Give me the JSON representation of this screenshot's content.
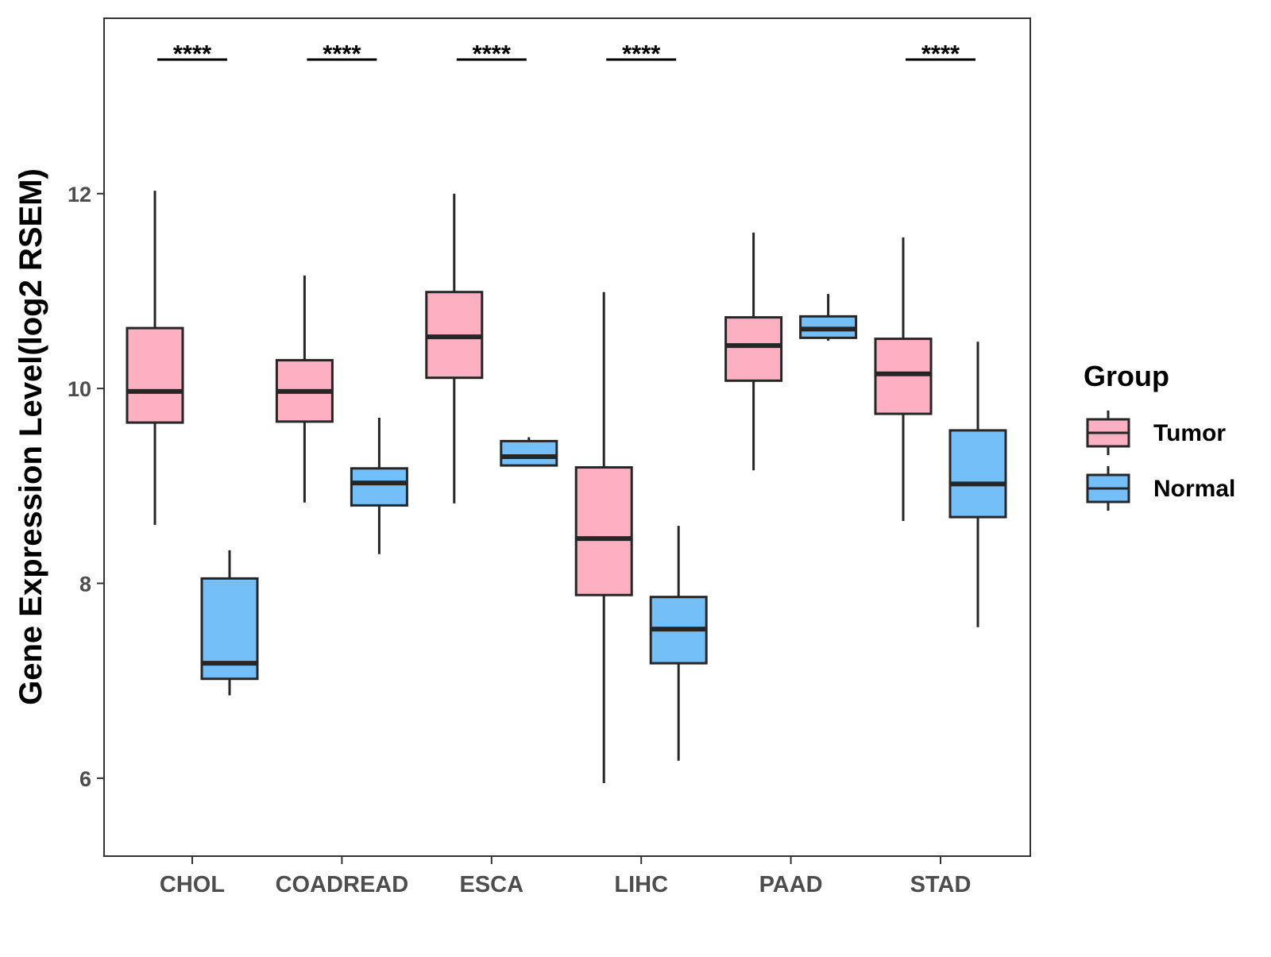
{
  "chart_data": {
    "type": "boxplot",
    "title": "",
    "xlabel": "",
    "ylabel": "Gene Expression Level(log2 RSEM)",
    "ylim": [
      5.2,
      13.8
    ],
    "yticks": [
      6,
      8,
      10,
      12
    ],
    "categories": [
      "CHOL",
      "COADREAD",
      "ESCA",
      "LIHC",
      "PAAD",
      "STAD"
    ],
    "legend": {
      "title": "Group",
      "position": "right"
    },
    "series": [
      {
        "name": "Tumor",
        "color": "#FCB0C2",
        "boxes": [
          {
            "category": "CHOL",
            "min": 8.6,
            "q1": 9.65,
            "median": 9.97,
            "q3": 10.62,
            "max": 12.03
          },
          {
            "category": "COADREAD",
            "min": 8.83,
            "q1": 9.66,
            "median": 9.97,
            "q3": 10.29,
            "max": 11.16
          },
          {
            "category": "ESCA",
            "min": 8.82,
            "q1": 10.11,
            "median": 10.53,
            "q3": 10.99,
            "max": 12.0
          },
          {
            "category": "LIHC",
            "min": 5.95,
            "q1": 7.88,
            "median": 8.46,
            "q3": 9.19,
            "max": 10.99
          },
          {
            "category": "PAAD",
            "min": 9.16,
            "q1": 10.08,
            "median": 10.44,
            "q3": 10.73,
            "max": 11.6
          },
          {
            "category": "STAD",
            "min": 8.64,
            "q1": 9.74,
            "median": 10.15,
            "q3": 10.51,
            "max": 11.55
          }
        ]
      },
      {
        "name": "Normal",
        "color": "#75BFF8",
        "boxes": [
          {
            "category": "CHOL",
            "min": 6.85,
            "q1": 7.02,
            "median": 7.18,
            "q3": 8.05,
            "max": 8.34
          },
          {
            "category": "COADREAD",
            "min": 8.3,
            "q1": 8.8,
            "median": 9.03,
            "q3": 9.18,
            "max": 9.7
          },
          {
            "category": "ESCA",
            "min": 9.2,
            "q1": 9.21,
            "median": 9.3,
            "q3": 9.46,
            "max": 9.5
          },
          {
            "category": "LIHC",
            "min": 6.18,
            "q1": 7.18,
            "median": 7.53,
            "q3": 7.86,
            "max": 8.59
          },
          {
            "category": "PAAD",
            "min": 10.49,
            "q1": 10.52,
            "median": 10.61,
            "q3": 10.74,
            "max": 10.97
          },
          {
            "category": "STAD",
            "min": 7.55,
            "q1": 8.68,
            "median": 9.02,
            "q3": 9.57,
            "max": 10.48
          }
        ]
      }
    ],
    "annotations": [
      {
        "category": "CHOL",
        "label": "****"
      },
      {
        "category": "COADREAD",
        "label": "****"
      },
      {
        "category": "ESCA",
        "label": "****"
      },
      {
        "category": "LIHC",
        "label": "****"
      },
      {
        "category": "STAD",
        "label": "****"
      }
    ]
  }
}
